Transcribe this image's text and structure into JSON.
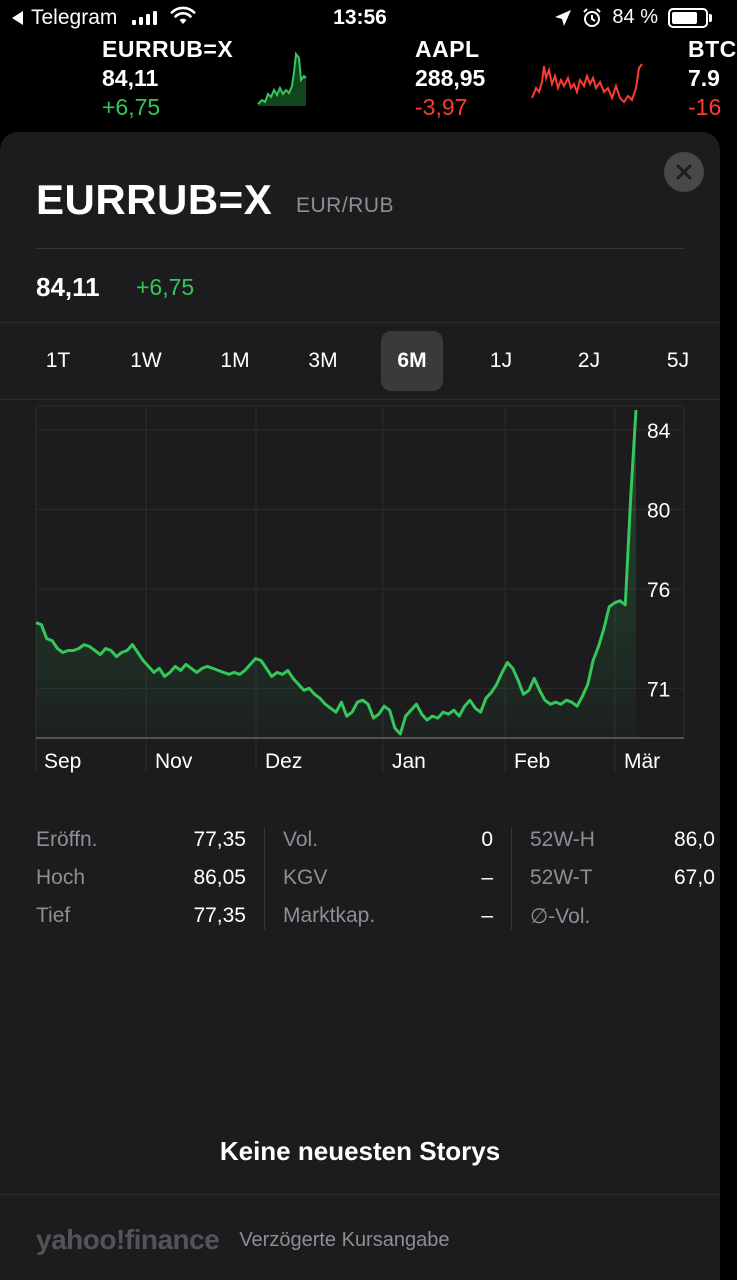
{
  "status_bar": {
    "back_app": "Telegram",
    "time": "13:56",
    "battery": "84 %",
    "battery_level": 0.84
  },
  "ticker": [
    {
      "symbol": "EURRUB=X",
      "price": "84,11",
      "change": "+6,75",
      "trend": "up",
      "color": "#34c759"
    },
    {
      "symbol": "AAPL",
      "price": "288,95",
      "change": "-3,97",
      "trend": "down",
      "color": "#ff3b30"
    },
    {
      "symbol": "BTC",
      "price": "7.9",
      "change": "-16",
      "trend": "down",
      "color": "#ff3b30"
    }
  ],
  "detail": {
    "symbol": "EURRUB=X",
    "name": "EUR/RUB",
    "price": "84,11",
    "change": "+6,75",
    "close_icon": "close-icon"
  },
  "ranges": [
    {
      "label": "1T",
      "active": false
    },
    {
      "label": "1W",
      "active": false
    },
    {
      "label": "1M",
      "active": false
    },
    {
      "label": "3M",
      "active": false
    },
    {
      "label": "6M",
      "active": true
    },
    {
      "label": "1J",
      "active": false
    },
    {
      "label": "2J",
      "active": false
    },
    {
      "label": "5J",
      "active": false
    }
  ],
  "chart_data": {
    "type": "line",
    "x_labels": [
      "Sep",
      "Nov",
      "Dez",
      "Jan",
      "Feb",
      "Mär"
    ],
    "y_ticks": [
      84,
      80,
      76,
      71
    ],
    "ylim": [
      68.5,
      85.2
    ],
    "grid": true,
    "line_color": "#34c759",
    "series": [
      {
        "values": [
          74.3,
          74.2,
          73.5,
          73.4,
          73.0,
          72.8,
          72.9,
          72.9,
          73.0,
          73.2,
          73.1,
          72.9,
          72.7,
          73.0,
          72.9,
          72.6,
          72.8,
          72.9,
          73.2,
          72.8,
          72.4,
          72.1,
          71.8,
          72.0,
          71.6,
          71.8,
          72.1,
          71.9,
          72.2,
          72.0,
          71.8,
          72.0,
          72.1,
          72.0,
          71.9,
          71.8,
          71.7,
          71.8,
          71.7,
          71.9,
          72.2,
          72.5,
          72.4,
          72.0,
          71.6,
          71.8,
          71.7,
          71.9,
          71.5,
          71.2,
          70.9,
          71.0,
          70.7,
          70.5,
          70.2,
          70.0,
          69.8,
          70.3,
          69.6,
          69.8,
          70.3,
          70.4,
          70.2,
          69.5,
          69.7,
          70.1,
          69.9,
          69.0,
          68.7,
          69.6,
          69.9,
          70.2,
          69.7,
          69.4,
          69.6,
          69.5,
          69.8,
          69.7,
          69.9,
          69.6,
          70.1,
          70.4,
          70.0,
          69.8,
          70.5,
          70.8,
          71.2,
          71.8,
          72.3,
          72.0,
          71.4,
          70.7,
          70.9,
          71.5,
          70.9,
          70.4,
          70.2,
          70.3,
          70.2,
          70.4,
          70.3,
          70.1,
          70.6,
          71.2,
          72.4,
          73.1,
          74.0,
          75.1,
          75.3,
          75.4,
          75.2,
          80.5,
          85.0
        ]
      }
    ]
  },
  "stats": {
    "col1": [
      {
        "label": "Eröffn.",
        "value": "77,35"
      },
      {
        "label": "Hoch",
        "value": "86,05"
      },
      {
        "label": "Tief",
        "value": "77,35"
      }
    ],
    "col2": [
      {
        "label": "Vol.",
        "value": "0"
      },
      {
        "label": "KGV",
        "value": "–"
      },
      {
        "label": "Marktkap.",
        "value": "–"
      }
    ],
    "col3": [
      {
        "label": "52W-H",
        "value": "86,0"
      },
      {
        "label": "52W-T",
        "value": "67,0"
      },
      {
        "label": "∅-Vol.",
        "value": ""
      }
    ]
  },
  "news": {
    "empty_text": "Keine neuesten Storys"
  },
  "footer": {
    "logo": "yahoo!finance",
    "note": "Verzögerte Kursangabe"
  }
}
